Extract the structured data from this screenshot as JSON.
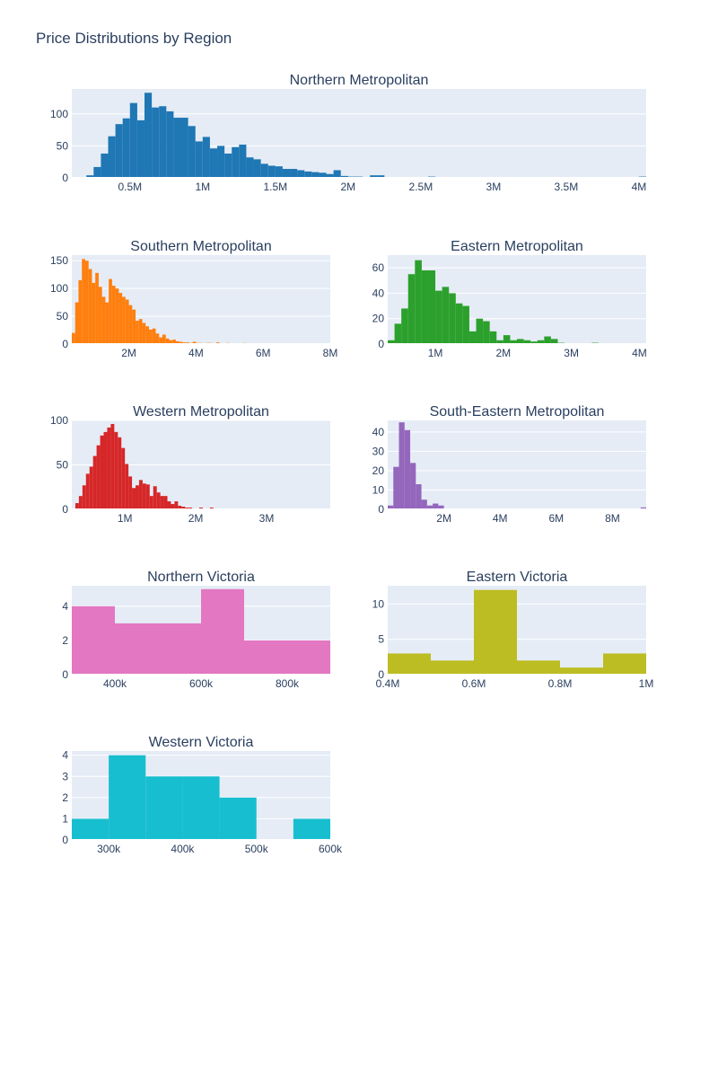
{
  "figure": {
    "title": "Price Distributions by Region"
  },
  "chart_data": [
    {
      "type": "bar",
      "title": "Northern Metropolitan",
      "color": "#1f77b4",
      "xlim": [
        100000,
        4050000
      ],
      "ylim": [
        0,
        139
      ],
      "xticks": [
        {
          "v": 500000,
          "label": "0.5M"
        },
        {
          "v": 1000000,
          "label": "1M"
        },
        {
          "v": 1500000,
          "label": "1.5M"
        },
        {
          "v": 2000000,
          "label": "2M"
        },
        {
          "v": 2500000,
          "label": "2.5M"
        },
        {
          "v": 3000000,
          "label": "3M"
        },
        {
          "v": 3500000,
          "label": "3.5M"
        },
        {
          "v": 4000000,
          "label": "4M"
        }
      ],
      "yticks": [
        {
          "v": 0,
          "label": "0"
        },
        {
          "v": 50,
          "label": "50"
        },
        {
          "v": 100,
          "label": "100"
        }
      ],
      "bin_start": 100000,
      "bin_width": 50000,
      "values": [
        1,
        0,
        4,
        17,
        38,
        65,
        84,
        93,
        117,
        90,
        133,
        110,
        112,
        104,
        94,
        94,
        81,
        57,
        64,
        46,
        50,
        38,
        48,
        52,
        32,
        29,
        22,
        19,
        18,
        14,
        14,
        12,
        10,
        9,
        8,
        6,
        12,
        3,
        2,
        2,
        1,
        4,
        4,
        0,
        1,
        1,
        1,
        1,
        0,
        2,
        0,
        0,
        1,
        1,
        1,
        0,
        0,
        1,
        1,
        0,
        0,
        0,
        0,
        0,
        1,
        0,
        1,
        0,
        0,
        0,
        0,
        0,
        0,
        0,
        0,
        0,
        0,
        0,
        2
      ]
    },
    {
      "type": "bar",
      "title": "Southern Metropolitan",
      "color": "#ff7f0e",
      "xlim": [
        300000,
        8000000
      ],
      "ylim": [
        0,
        160
      ],
      "xticks": [
        {
          "v": 2000000,
          "label": "2M"
        },
        {
          "v": 4000000,
          "label": "4M"
        },
        {
          "v": 6000000,
          "label": "6M"
        },
        {
          "v": 8000000,
          "label": "8M"
        }
      ],
      "yticks": [
        {
          "v": 0,
          "label": "0"
        },
        {
          "v": 50,
          "label": "50"
        },
        {
          "v": 100,
          "label": "100"
        },
        {
          "v": 150,
          "label": "150"
        }
      ],
      "bin_start": 300000,
      "bin_width": 100000,
      "values": [
        20,
        75,
        115,
        153,
        150,
        135,
        110,
        128,
        103,
        85,
        75,
        117,
        105,
        100,
        92,
        85,
        80,
        70,
        62,
        42,
        45,
        38,
        32,
        26,
        28,
        19,
        12,
        17,
        10,
        7,
        8,
        5,
        4,
        3,
        3,
        2,
        4,
        2,
        2,
        1,
        2,
        2,
        0,
        3,
        1,
        0,
        2,
        0,
        1,
        1,
        0,
        2,
        1,
        0,
        1,
        0,
        0,
        0,
        0,
        0,
        0,
        0,
        0,
        0,
        0,
        0,
        0,
        0,
        0,
        0,
        0,
        0,
        0,
        0,
        0,
        0
      ]
    },
    {
      "type": "bar",
      "title": "Eastern Metropolitan",
      "color": "#2ca02c",
      "xlim": [
        300000,
        4100000
      ],
      "ylim": [
        0,
        70
      ],
      "xticks": [
        {
          "v": 1000000,
          "label": "1M"
        },
        {
          "v": 2000000,
          "label": "2M"
        },
        {
          "v": 3000000,
          "label": "3M"
        },
        {
          "v": 4000000,
          "label": "4M"
        }
      ],
      "yticks": [
        {
          "v": 0,
          "label": "0"
        },
        {
          "v": 20,
          "label": "20"
        },
        {
          "v": 40,
          "label": "40"
        },
        {
          "v": 60,
          "label": "60"
        }
      ],
      "bin_start": 300000,
      "bin_width": 100000,
      "values": [
        3,
        16,
        28,
        55,
        66,
        58,
        58,
        42,
        45,
        40,
        32,
        30,
        10,
        20,
        18,
        10,
        3,
        7,
        3,
        4,
        3,
        2,
        3,
        6,
        4,
        1,
        0,
        0,
        0,
        0,
        1,
        0,
        0,
        0,
        0,
        0,
        0,
        0
      ]
    },
    {
      "type": "bar",
      "title": "Western Metropolitan",
      "color": "#d62728",
      "xlim": [
        250000,
        3900000
      ],
      "ylim": [
        0,
        100
      ],
      "xticks": [
        {
          "v": 1000000,
          "label": "1M"
        },
        {
          "v": 2000000,
          "label": "2M"
        },
        {
          "v": 3000000,
          "label": "3M"
        }
      ],
      "yticks": [
        {
          "v": 0,
          "label": "0"
        },
        {
          "v": 50,
          "label": "50"
        },
        {
          "v": 100,
          "label": "100"
        }
      ],
      "bin_start": 300000,
      "bin_width": 50000,
      "values": [
        7,
        15,
        27,
        40,
        48,
        60,
        72,
        83,
        87,
        92,
        96,
        87,
        81,
        69,
        51,
        37,
        24,
        27,
        33,
        29,
        28,
        15,
        26,
        19,
        15,
        15,
        9,
        6,
        9,
        4,
        3,
        2,
        2,
        1,
        1,
        2,
        1,
        1,
        2,
        1,
        1,
        1,
        1,
        1,
        1,
        1,
        1,
        1,
        1,
        1,
        1,
        1,
        1,
        0,
        0,
        0,
        0,
        0,
        0,
        0,
        0,
        0,
        0,
        0,
        0,
        0,
        0,
        0,
        0,
        0,
        0,
        1
      ]
    },
    {
      "type": "bar",
      "title": "South-Eastern Metropolitan",
      "color": "#9467bd",
      "xlim": [
        0,
        9200000
      ],
      "ylim": [
        0,
        46
      ],
      "xticks": [
        {
          "v": 2000000,
          "label": "2M"
        },
        {
          "v": 4000000,
          "label": "4M"
        },
        {
          "v": 6000000,
          "label": "6M"
        },
        {
          "v": 8000000,
          "label": "8M"
        }
      ],
      "yticks": [
        {
          "v": 0,
          "label": "0"
        },
        {
          "v": 10,
          "label": "10"
        },
        {
          "v": 20,
          "label": "20"
        },
        {
          "v": 30,
          "label": "30"
        },
        {
          "v": 40,
          "label": "40"
        }
      ],
      "bin_start": 0,
      "bin_width": 200000,
      "values": [
        2,
        22,
        45,
        41,
        24,
        13,
        5,
        2,
        3,
        2,
        0,
        0,
        0,
        0,
        0,
        0,
        0,
        0,
        0,
        0,
        0,
        0,
        0,
        0,
        0,
        0,
        0,
        0,
        0,
        0,
        0,
        0,
        0,
        0,
        0,
        0,
        0,
        0,
        0,
        0,
        0,
        0,
        0,
        0,
        0,
        1
      ]
    },
    {
      "type": "bar",
      "title": "Northern Victoria",
      "color": "#e377c2",
      "xlim": [
        300000,
        900000
      ],
      "ylim": [
        0,
        5.2
      ],
      "xticks": [
        {
          "v": 400000,
          "label": "400k"
        },
        {
          "v": 600000,
          "label": "600k"
        },
        {
          "v": 800000,
          "label": "800k"
        }
      ],
      "yticks": [
        {
          "v": 0,
          "label": "0"
        },
        {
          "v": 2,
          "label": "2"
        },
        {
          "v": 4,
          "label": "4"
        }
      ],
      "bin_start": 300000,
      "bin_width": 100000,
      "values": [
        4,
        3,
        3,
        5,
        2,
        2
      ]
    },
    {
      "type": "bar",
      "title": "Eastern Victoria",
      "color": "#bcbd22",
      "xlim": [
        400000,
        1000000
      ],
      "ylim": [
        0,
        12.6
      ],
      "xticks": [
        {
          "v": 400000,
          "label": "0.4M"
        },
        {
          "v": 600000,
          "label": "0.6M"
        },
        {
          "v": 800000,
          "label": "0.8M"
        },
        {
          "v": 1000000,
          "label": "1M"
        }
      ],
      "yticks": [
        {
          "v": 0,
          "label": "0"
        },
        {
          "v": 5,
          "label": "5"
        },
        {
          "v": 10,
          "label": "10"
        }
      ],
      "bin_start": 400000,
      "bin_width": 100000,
      "values": [
        3,
        2,
        12,
        2,
        1,
        3
      ]
    },
    {
      "type": "bar",
      "title": "Western Victoria",
      "color": "#17becf",
      "xlim": [
        250000,
        600000
      ],
      "ylim": [
        0,
        4.2
      ],
      "xticks": [
        {
          "v": 300000,
          "label": "300k"
        },
        {
          "v": 400000,
          "label": "400k"
        },
        {
          "v": 500000,
          "label": "500k"
        },
        {
          "v": 600000,
          "label": "600k"
        }
      ],
      "yticks": [
        {
          "v": 0,
          "label": "0"
        },
        {
          "v": 1,
          "label": "1"
        },
        {
          "v": 2,
          "label": "2"
        },
        {
          "v": 3,
          "label": "3"
        },
        {
          "v": 4,
          "label": "4"
        }
      ],
      "bin_start": 250000,
      "bin_width": 50000,
      "values": [
        1,
        4,
        3,
        3,
        2,
        0,
        1
      ]
    }
  ]
}
